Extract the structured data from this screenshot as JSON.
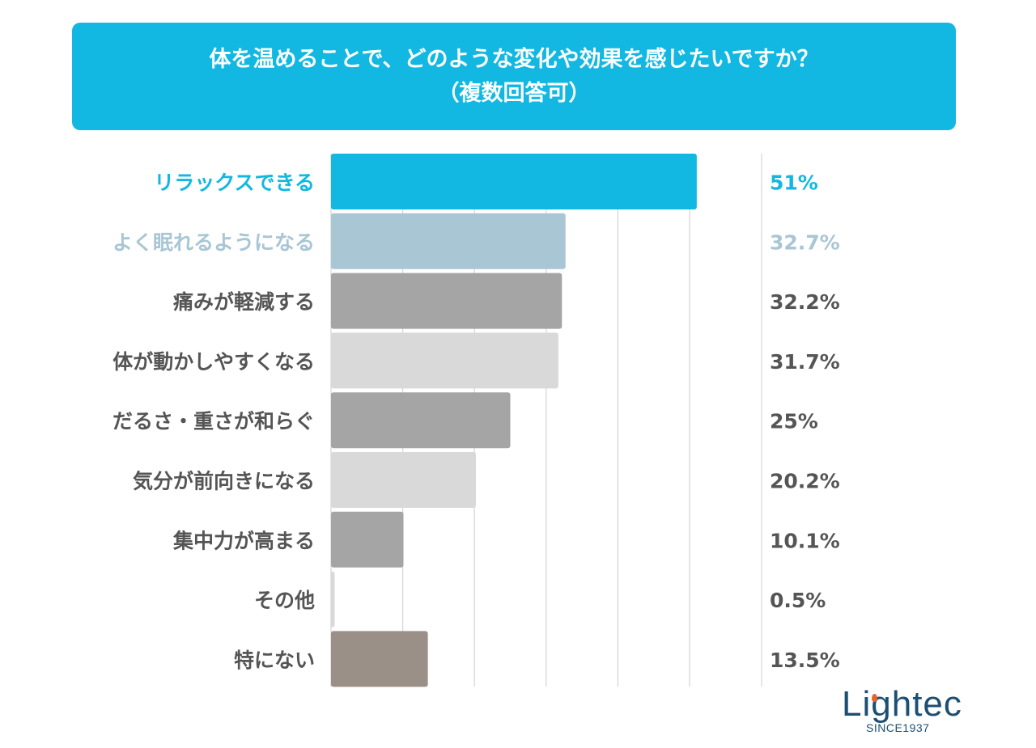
{
  "title": {
    "line1": "体を温めることで、どのような変化や効果を感じたいですか？",
    "line2": "（複数回答可）"
  },
  "chart_data": {
    "type": "bar",
    "orientation": "horizontal",
    "title": "体を温めることで、どのような変化や効果を感じたいですか？（複数回答可）",
    "categories": [
      "リラックスできる",
      "よく眠れるようになる",
      "痛みが軽減する",
      "体が動かしやすくなる",
      "だるさ・重さが和らぐ",
      "気分が前向きになる",
      "集中力が高まる",
      "その他",
      "特にない"
    ],
    "values": [
      51,
      32.7,
      32.2,
      31.7,
      25,
      20.2,
      10.1,
      0.5,
      13.5
    ],
    "value_labels": [
      "51%",
      "32.7%",
      "32.2%",
      "31.7%",
      "25%",
      "20.2%",
      "10.1%",
      "0.5%",
      "13.5%"
    ],
    "bar_colors": [
      "#12b8e2",
      "#a8c6d4",
      "#a5a5a5",
      "#d9d9d9",
      "#a5a5a5",
      "#d9d9d9",
      "#a5a5a5",
      "#d9d9d9",
      "#9a9087"
    ],
    "label_colors": [
      "#12b8e2",
      "#a8c6d4",
      "#555555",
      "#555555",
      "#555555",
      "#555555",
      "#555555",
      "#555555",
      "#555555"
    ],
    "xlim": [
      0,
      60
    ],
    "grid": true,
    "gridline_step": 10,
    "xlabel": "",
    "ylabel": ""
  },
  "logo": {
    "name": "Lightec",
    "sub": "SINCE1937"
  }
}
